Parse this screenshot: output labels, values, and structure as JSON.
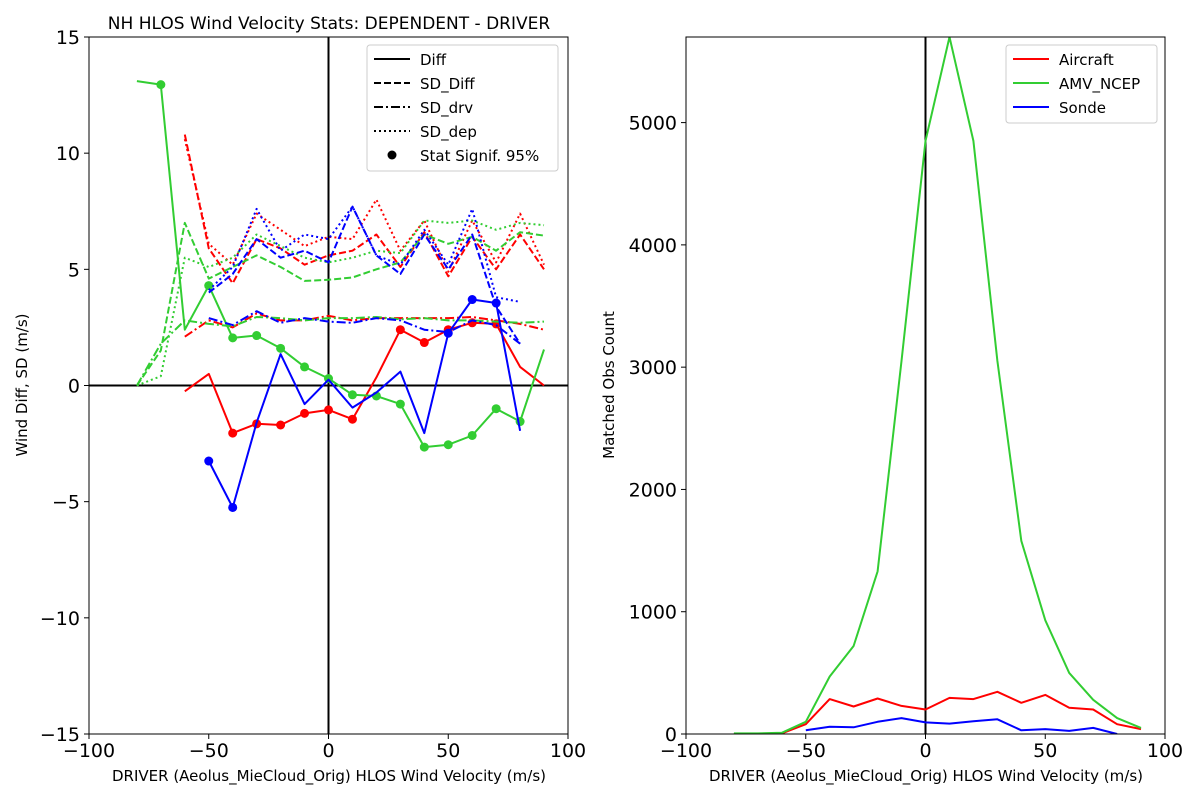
{
  "figure": {
    "background": "#ffffff"
  },
  "chart_data": [
    {
      "type": "line",
      "title": "NH HLOS Wind Velocity Stats: DEPENDENT - DRIVER",
      "xlabel": "DRIVER (Aeolus_MieCloud_Orig) HLOS Wind Velocity (m/s)",
      "ylabel": "Wind Diff, SD (m/s)",
      "xlim": [
        -100,
        100
      ],
      "ylim": [
        -15,
        15
      ],
      "xticks": [
        -100,
        -50,
        0,
        50,
        100
      ],
      "yticks": [
        -15,
        -10,
        -5,
        0,
        5,
        10,
        15
      ],
      "grid": false,
      "reference_lines": {
        "x": 0,
        "y": 0
      },
      "legend": {
        "position": "top-right",
        "entries": [
          {
            "label": "Diff",
            "style": "solid"
          },
          {
            "label": "SD_Diff",
            "style": "dashed"
          },
          {
            "label": "SD_drv",
            "style": "dashdot"
          },
          {
            "label": "SD_dep",
            "style": "dotted"
          },
          {
            "label": "Stat Signif. 95%",
            "style": "marker"
          }
        ]
      },
      "colors": {
        "Aircraft": "#ff0000",
        "AMV_NCEP": "#32cd32",
        "Sonde": "#0000ff"
      },
      "series": [
        {
          "group": "Aircraft",
          "kind": "diff",
          "x": [
            -60,
            -50,
            -40,
            -30,
            -20,
            -10,
            0,
            10,
            20,
            30,
            40,
            50,
            60,
            70,
            80,
            90
          ],
          "values": [
            -0.25,
            0.5,
            -2.05,
            -1.65,
            -1.7,
            -1.2,
            -1.05,
            -1.45,
            0.35,
            2.4,
            1.85,
            2.4,
            2.7,
            2.65,
            0.8,
            0.0
          ],
          "significant": [
            false,
            false,
            true,
            true,
            true,
            true,
            true,
            true,
            false,
            true,
            true,
            true,
            true,
            true,
            false,
            false
          ]
        },
        {
          "group": "Aircraft",
          "kind": "sd_diff",
          "x": [
            -60,
            -50,
            -40,
            -30,
            -20,
            -10,
            0,
            10,
            20,
            30,
            40,
            50,
            60,
            70,
            80,
            90
          ],
          "values": [
            10.8,
            5.9,
            4.4,
            6.3,
            5.9,
            5.2,
            5.6,
            5.8,
            6.5,
            5.1,
            6.6,
            4.7,
            6.4,
            5.0,
            6.5,
            5.0
          ]
        },
        {
          "group": "Aircraft",
          "kind": "sd_drv",
          "x": [
            -60,
            -50,
            -40,
            -30,
            -20,
            -10,
            0,
            10,
            20,
            30,
            40,
            50,
            60,
            70,
            80,
            90
          ],
          "values": [
            2.1,
            2.8,
            2.5,
            3.1,
            2.8,
            2.8,
            3.0,
            2.8,
            2.9,
            2.9,
            2.9,
            2.9,
            2.95,
            2.8,
            2.65,
            2.4
          ]
        },
        {
          "group": "Aircraft",
          "kind": "sd_dep",
          "x": [
            -60,
            -50,
            -40,
            -30,
            -20,
            -10,
            0,
            10,
            20,
            30,
            40,
            50,
            60,
            70,
            80,
            90
          ],
          "values": [
            10.6,
            6.1,
            5.2,
            7.4,
            6.7,
            6.0,
            6.4,
            6.3,
            8.0,
            5.8,
            7.1,
            4.9,
            7.1,
            5.3,
            7.4,
            5.2
          ]
        },
        {
          "group": "AMV_NCEP",
          "kind": "diff",
          "x": [
            -80,
            -70,
            -60,
            -50,
            -40,
            -30,
            -20,
            -10,
            0,
            10,
            20,
            30,
            40,
            50,
            60,
            70,
            80,
            90
          ],
          "values": [
            13.1,
            12.95,
            2.4,
            4.3,
            2.05,
            2.15,
            1.6,
            0.8,
            0.3,
            -0.4,
            -0.45,
            -0.8,
            -2.65,
            -2.55,
            -2.15,
            -1.0,
            -1.55,
            1.55
          ],
          "significant": [
            false,
            true,
            false,
            true,
            true,
            true,
            true,
            true,
            true,
            true,
            true,
            true,
            true,
            true,
            true,
            true,
            true,
            false
          ]
        },
        {
          "group": "AMV_NCEP",
          "kind": "sd_diff",
          "x": [
            -80,
            -70,
            -60,
            -50,
            -40,
            -30,
            -20,
            -10,
            0,
            10,
            20,
            30,
            40,
            50,
            60,
            70,
            80,
            90
          ],
          "values": [
            0.0,
            1.5,
            7.0,
            4.6,
            5.1,
            5.6,
            5.1,
            4.5,
            4.55,
            4.65,
            5.0,
            5.3,
            6.5,
            6.1,
            6.4,
            5.8,
            6.6,
            6.45
          ]
        },
        {
          "group": "AMV_NCEP",
          "kind": "sd_drv",
          "x": [
            -80,
            -70,
            -60,
            -50,
            -40,
            -30,
            -20,
            -10,
            0,
            10,
            20,
            30,
            40,
            50,
            60,
            70,
            80,
            90
          ],
          "values": [
            0.0,
            1.8,
            2.8,
            2.65,
            2.55,
            2.95,
            2.9,
            2.8,
            2.9,
            2.9,
            2.95,
            2.85,
            2.9,
            2.8,
            2.8,
            2.75,
            2.7,
            2.75
          ]
        },
        {
          "group": "AMV_NCEP",
          "kind": "sd_dep",
          "x": [
            -80,
            -70,
            -60,
            -50,
            -40,
            -30,
            -20,
            -10,
            0,
            10,
            20,
            30,
            40,
            50,
            60,
            70,
            80,
            90
          ],
          "values": [
            0.0,
            0.4,
            5.5,
            5.1,
            5.5,
            6.5,
            6.0,
            5.5,
            5.3,
            5.5,
            5.8,
            5.7,
            7.1,
            7.0,
            7.1,
            6.7,
            7.0,
            6.9
          ]
        },
        {
          "group": "Sonde",
          "kind": "diff",
          "x": [
            -50,
            -40,
            -30,
            -20,
            -10,
            0,
            10,
            20,
            30,
            40,
            50,
            60,
            70,
            80
          ],
          "values": [
            -3.25,
            -5.25,
            -1.6,
            1.35,
            -0.8,
            0.25,
            -0.95,
            -0.3,
            0.6,
            -2.05,
            2.25,
            3.7,
            3.55,
            -1.95
          ],
          "significant": [
            true,
            true,
            false,
            false,
            false,
            false,
            false,
            false,
            false,
            false,
            true,
            true,
            true,
            false
          ]
        },
        {
          "group": "Sonde",
          "kind": "sd_diff",
          "x": [
            -50,
            -40,
            -30,
            -20,
            -10,
            0,
            10,
            20,
            30,
            40,
            50,
            60,
            70,
            80
          ],
          "values": [
            4.0,
            4.8,
            6.3,
            5.5,
            5.8,
            5.3,
            7.7,
            5.6,
            4.8,
            6.5,
            5.0,
            6.5,
            3.4,
            1.8
          ]
        },
        {
          "group": "Sonde",
          "kind": "sd_drv",
          "x": [
            -50,
            -40,
            -30,
            -20,
            -10,
            0,
            10,
            20,
            30,
            40,
            50,
            60,
            70,
            80
          ],
          "values": [
            2.9,
            2.6,
            3.2,
            2.7,
            2.9,
            2.75,
            2.7,
            2.9,
            2.8,
            2.4,
            2.3,
            2.8,
            2.6,
            1.8
          ]
        },
        {
          "group": "Sonde",
          "kind": "sd_dep",
          "x": [
            -50,
            -40,
            -30,
            -20,
            -10,
            0,
            10,
            20,
            30,
            40,
            50,
            60,
            70,
            80
          ],
          "values": [
            4.1,
            5.1,
            7.6,
            5.8,
            6.5,
            6.3,
            7.7,
            5.6,
            5.2,
            6.7,
            5.2,
            7.6,
            3.8,
            3.6
          ]
        }
      ]
    },
    {
      "type": "line",
      "title": "",
      "xlabel": "DRIVER (Aeolus_MieCloud_Orig) HLOS Wind Velocity (m/s)",
      "ylabel": "Matched Obs Count",
      "xlim": [
        -100,
        100
      ],
      "ylim": [
        0,
        5700
      ],
      "xticks": [
        -100,
        -50,
        0,
        50,
        100
      ],
      "yticks": [
        0,
        1000,
        2000,
        3000,
        4000,
        5000
      ],
      "grid": false,
      "reference_lines": {
        "x": 0
      },
      "legend": {
        "position": "top-right"
      },
      "series": [
        {
          "name": "Aircraft",
          "color": "#ff0000",
          "x": [
            -80,
            -70,
            -60,
            -50,
            -40,
            -30,
            -20,
            -10,
            0,
            10,
            20,
            30,
            40,
            50,
            60,
            70,
            80,
            90
          ],
          "values": [
            0,
            0,
            5,
            80,
            285,
            225,
            290,
            230,
            200,
            295,
            285,
            345,
            255,
            320,
            215,
            200,
            80,
            40
          ]
        },
        {
          "name": "AMV_NCEP",
          "color": "#32cd32",
          "x": [
            -80,
            -70,
            -60,
            -50,
            -40,
            -30,
            -20,
            -10,
            0,
            10,
            20,
            30,
            40,
            50,
            60,
            70,
            80,
            90
          ],
          "values": [
            5,
            5,
            10,
            100,
            470,
            720,
            1330,
            3050,
            4850,
            5700,
            4850,
            3050,
            1580,
            930,
            500,
            280,
            130,
            50
          ]
        },
        {
          "name": "Sonde",
          "color": "#0000ff",
          "x": [
            -50,
            -40,
            -30,
            -20,
            -10,
            0,
            10,
            20,
            30,
            40,
            50,
            60,
            70,
            80
          ],
          "values": [
            30,
            60,
            55,
            100,
            130,
            95,
            85,
            105,
            120,
            30,
            40,
            25,
            50,
            0
          ]
        }
      ]
    }
  ]
}
